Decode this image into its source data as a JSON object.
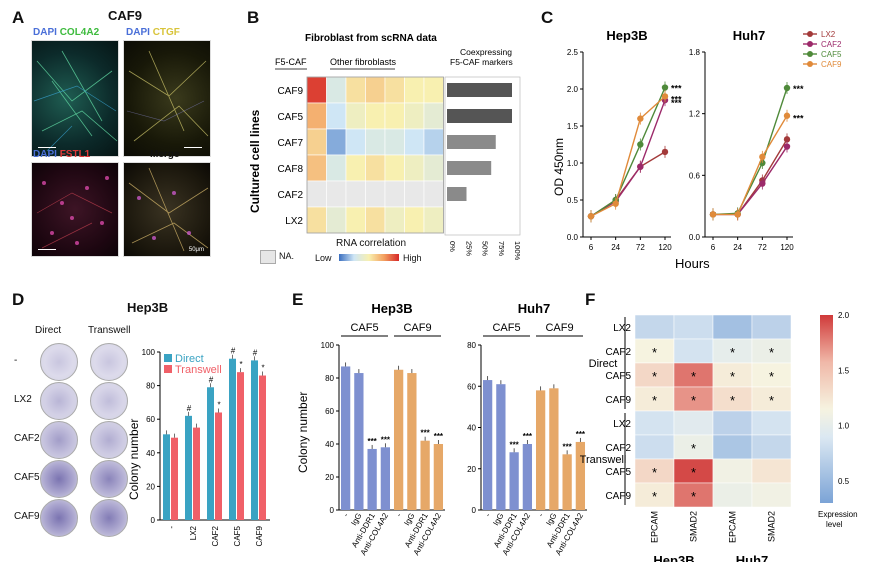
{
  "panel_letters": [
    "A",
    "B",
    "C",
    "D",
    "E",
    "F"
  ],
  "panelA": {
    "title": "CAF9",
    "tiles": [
      {
        "labels": [
          {
            "t": "DAPI",
            "c": "#4a6fd8"
          },
          {
            "t": "COL4A2",
            "c": "#3dbb3d"
          }
        ]
      },
      {
        "labels": [
          {
            "t": "DAPI",
            "c": "#4a6fd8"
          },
          {
            "t": "CTGF",
            "c": "#d8c43a"
          }
        ]
      },
      {
        "labels": [
          {
            "t": "DAPI",
            "c": "#4a6fd8"
          },
          {
            "t": "FSTL1",
            "c": "#e03a3a"
          }
        ]
      },
      {
        "labels": [
          {
            "t": "Merge",
            "c": "#111111"
          }
        ]
      }
    ],
    "scale_label": "50μm"
  },
  "panelB": {
    "title": "Fibroblast from scRNA data",
    "group1": "F5-CAF",
    "group2": "Other fibroblasts",
    "right_title_1": "Coexpressing",
    "right_title_2": "F5-CAF markers",
    "ylabel": "Cultured cell lines",
    "rows": [
      "CAF9",
      "CAF5",
      "CAF7",
      "CAF8",
      "CAF2",
      "LX2"
    ],
    "matrix": [
      [
        0.95,
        0.35,
        0.55,
        0.6,
        0.55,
        0.5,
        0.5
      ],
      [
        0.7,
        0.3,
        0.45,
        0.5,
        0.5,
        0.45,
        0.4
      ],
      [
        0.6,
        0.15,
        0.3,
        0.35,
        0.35,
        0.3,
        0.25
      ],
      [
        0.65,
        0.35,
        0.5,
        0.55,
        0.5,
        0.45,
        0.4
      ],
      [
        null,
        null,
        null,
        null,
        null,
        null,
        null
      ],
      [
        0.55,
        0.4,
        0.5,
        0.55,
        0.45,
        0.5,
        0.45
      ]
    ],
    "bars": [
      100,
      100,
      75,
      68,
      30,
      0
    ],
    "bar_ticks": [
      "0%",
      "25%",
      "50%",
      "75%",
      "100%"
    ],
    "legend_title": "RNA correlation",
    "legend_low": "Low",
    "legend_high": "High",
    "na_label": "NA."
  },
  "panelC": {
    "ylabel": "OD 450nm",
    "xlabel": "Hours",
    "legend": [
      {
        "name": "LX2",
        "color": "#a33a3a"
      },
      {
        "name": "CAF2",
        "color": "#9c2a6a"
      },
      {
        "name": "CAF5",
        "color": "#4f8a3a"
      },
      {
        "name": "CAF9",
        "color": "#e08a3a"
      }
    ]
  },
  "panelD": {
    "title": "Hep3B",
    "col_direct": "Direct",
    "col_transwell": "Transwell",
    "row_labels": [
      "-",
      "LX2",
      "CAF2",
      "CAF5",
      "CAF9"
    ]
  },
  "panelE": {
    "ylabel": "Colony number",
    "groups": [
      {
        "label": "CAF5",
        "start": 1,
        "end": 4
      },
      {
        "label": "CAF9",
        "start": 4,
        "end": 8
      }
    ],
    "xcats": [
      "-",
      "IgG",
      "Anti-DDR1",
      "Anti-COL4A2",
      "-",
      "IgG",
      "Anti-DDR1",
      "Anti-COL4A2"
    ],
    "colors": [
      "#7e90d0",
      "#e6a868"
    ]
  },
  "panelF": {
    "row_groups": [
      {
        "label": "Direct",
        "rows": [
          "LX2",
          "CAF2",
          "CAF5",
          "CAF9"
        ]
      },
      {
        "label": "Transwell",
        "rows": [
          "LX2",
          "CAF2",
          "CAF5",
          "CAF9"
        ]
      }
    ],
    "cols": [
      "EPCAM",
      "SMAD2",
      "EPCAM",
      "SMAD2"
    ],
    "col_groups": [
      "Hep3B",
      "Huh7"
    ],
    "values": [
      [
        0.75,
        0.8,
        0.55,
        0.7
      ],
      [
        1.15,
        0.85,
        1.0,
        1.05
      ],
      [
        1.35,
        1.8,
        1.2,
        1.15
      ],
      [
        1.2,
        1.7,
        1.3,
        1.2
      ],
      [
        0.85,
        0.95,
        0.7,
        0.85
      ],
      [
        0.8,
        1.05,
        0.6,
        0.75
      ],
      [
        1.35,
        1.95,
        1.1,
        1.25
      ],
      [
        1.2,
        1.8,
        1.05,
        1.1
      ]
    ],
    "stars": [
      [
        false,
        false,
        false,
        false
      ],
      [
        true,
        false,
        true,
        true
      ],
      [
        true,
        true,
        true,
        true
      ],
      [
        true,
        true,
        true,
        true
      ],
      [
        false,
        false,
        false,
        false
      ],
      [
        false,
        true,
        false,
        false
      ],
      [
        true,
        true,
        false,
        false
      ],
      [
        true,
        true,
        false,
        false
      ]
    ],
    "star_symbol": "*",
    "legend_ticks": [
      "2.0",
      "1.5",
      "1.0",
      "0.5"
    ],
    "legend_label_1": "Expression",
    "legend_label_2": "level",
    "vmin": 0.3,
    "vmax": 2.0
  },
  "chart_data": [
    {
      "type": "line",
      "title": "Hep3B",
      "xlabel": "Hours",
      "ylabel": "OD 450nm",
      "x": [
        6,
        24,
        72,
        120
      ],
      "xticks": [
        "6",
        "24",
        "72",
        "120"
      ],
      "ylim": [
        0,
        2.5
      ],
      "yticks": [
        "0.0",
        "0.5",
        "1.0",
        "1.5",
        "2.0",
        "2.5"
      ],
      "series": [
        {
          "name": "LX2",
          "values": [
            0.28,
            0.5,
            0.95,
            1.15
          ]
        },
        {
          "name": "CAF2",
          "values": [
            0.28,
            0.48,
            0.95,
            1.85
          ]
        },
        {
          "name": "CAF5",
          "values": [
            0.28,
            0.5,
            1.25,
            2.02
          ]
        },
        {
          "name": "CAF9",
          "values": [
            0.28,
            0.45,
            1.6,
            1.9
          ]
        }
      ],
      "annotations": [
        "***",
        "***",
        "***"
      ]
    },
    {
      "type": "line",
      "title": "Huh7",
      "xlabel": "Hours",
      "ylabel": "",
      "x": [
        6,
        24,
        72,
        120
      ],
      "xticks": [
        "6",
        "24",
        "72",
        "120"
      ],
      "ylim": [
        0,
        1.8
      ],
      "yticks": [
        "0.0",
        "0.6",
        "1.2",
        "1.8"
      ],
      "series": [
        {
          "name": "LX2",
          "values": [
            0.22,
            0.22,
            0.55,
            0.95
          ]
        },
        {
          "name": "CAF2",
          "values": [
            0.22,
            0.22,
            0.52,
            0.88
          ]
        },
        {
          "name": "CAF5",
          "values": [
            0.22,
            0.23,
            0.72,
            1.45
          ]
        },
        {
          "name": "CAF9",
          "values": [
            0.22,
            0.22,
            0.78,
            1.18
          ]
        }
      ],
      "annotations": [
        "***",
        "***"
      ]
    },
    {
      "type": "bar",
      "title": "",
      "ylabel": "Colony number",
      "categories": [
        "-",
        "LX2",
        "CAF2",
        "CAF5",
        "CAF9"
      ],
      "ylim": [
        0,
        100
      ],
      "yticks": [
        "0",
        "20",
        "40",
        "60",
        "80",
        "100"
      ],
      "series": [
        {
          "name": "Direct",
          "color": "#3aa3c3",
          "values": [
            51,
            62,
            79,
            96,
            95
          ],
          "marks": [
            "",
            "#",
            "#",
            "#",
            "#"
          ]
        },
        {
          "name": "Transwell",
          "color": "#f06068",
          "values": [
            49,
            55,
            64,
            88,
            86
          ],
          "marks": [
            "",
            "",
            "*",
            "*",
            "*"
          ]
        }
      ]
    },
    {
      "type": "bar",
      "title": "Hep3B",
      "ylabel": "Colony number",
      "categories": [
        "-",
        "IgG",
        "Anti-DDR1",
        "Anti-COL4A2",
        "-",
        "IgG",
        "Anti-DDR1",
        "Anti-COL4A2"
      ],
      "ylim": [
        0,
        100
      ],
      "yticks": [
        "0",
        "20",
        "40",
        "60",
        "80",
        "100"
      ],
      "values": [
        87,
        83,
        37,
        38,
        85,
        83,
        42,
        40
      ],
      "marks": [
        "",
        "",
        "***",
        "***",
        "",
        "",
        "***",
        "***"
      ]
    },
    {
      "type": "bar",
      "title": "Huh7",
      "ylabel": "",
      "categories": [
        "-",
        "IgG",
        "Anti-DDR1",
        "Anti-COL4A2",
        "-",
        "IgG",
        "Anti-DDR1",
        "Anti-COL4A2"
      ],
      "ylim": [
        0,
        80
      ],
      "yticks": [
        "0",
        "20",
        "40",
        "60",
        "80"
      ],
      "values": [
        63,
        61,
        28,
        32,
        58,
        59,
        27,
        33
      ],
      "marks": [
        "",
        "",
        "***",
        "***",
        "",
        "",
        "***",
        "***"
      ]
    }
  ]
}
